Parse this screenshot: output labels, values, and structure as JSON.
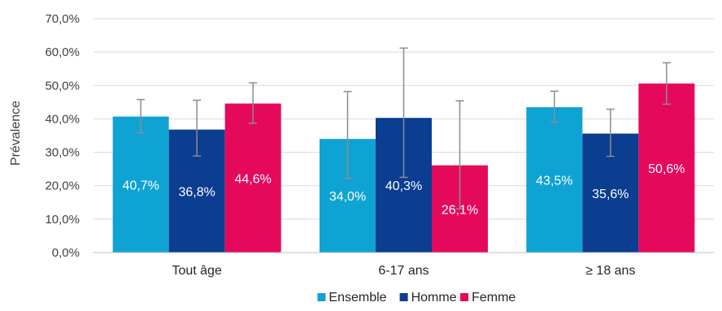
{
  "chart_data": {
    "type": "bar",
    "ylabel": "Prévalence",
    "xlabel": "",
    "title": "",
    "ylim": [
      0,
      70
    ],
    "ytick_step": 10,
    "ytick_labels": [
      "0,0%",
      "10,0%",
      "20,0%",
      "30,0%",
      "40,0%",
      "50,0%",
      "60,0%",
      "70,0%"
    ],
    "grid": true,
    "legend_position": "bottom",
    "categories": [
      "Tout âge",
      "6-17 ans",
      "≥ 18 ans"
    ],
    "series": [
      {
        "name": "Ensemble",
        "color": "#0FA3D4",
        "values": [
          40.7,
          34.0,
          43.5
        ],
        "labels": [
          "40,7%",
          "34,0%",
          "43,5%"
        ],
        "error_low": [
          35.8,
          22.2,
          39.0
        ],
        "error_high": [
          45.8,
          48.2,
          48.3
        ]
      },
      {
        "name": "Homme",
        "color": "#0B3D91",
        "values": [
          36.8,
          40.3,
          35.6
        ],
        "labels": [
          "36,8%",
          "40,3%",
          "35,6%"
        ],
        "error_low": [
          28.9,
          22.5,
          28.8
        ],
        "error_high": [
          45.6,
          61.2,
          42.9
        ]
      },
      {
        "name": "Femme",
        "color": "#E5095C",
        "values": [
          44.6,
          26.1,
          50.6
        ],
        "labels": [
          "44,6%",
          "26,1%",
          "50,6%"
        ],
        "error_low": [
          38.7,
          13.1,
          44.4
        ],
        "error_high": [
          50.8,
          45.4,
          56.8
        ]
      }
    ]
  }
}
